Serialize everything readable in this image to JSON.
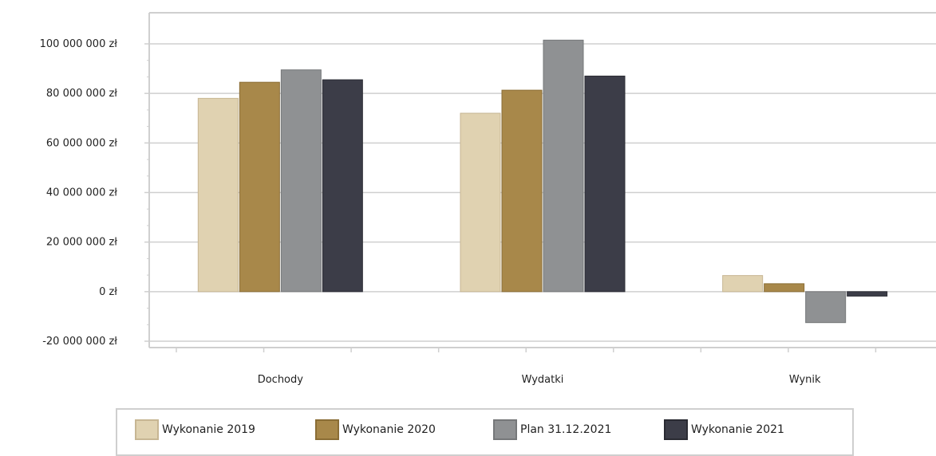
{
  "chart_data": {
    "type": "bar",
    "categories": [
      "Dochody",
      "Wydatki",
      "Wynik"
    ],
    "series": [
      {
        "name": "Wykonanie 2019",
        "color": "#e0d2b1",
        "edge": "#c7b693",
        "values": [
          78000000,
          72000000,
          6500000
        ]
      },
      {
        "name": "Wykonanie 2020",
        "color": "#a8884a",
        "edge": "#8a6d35",
        "values": [
          84500000,
          81300000,
          3200000
        ]
      },
      {
        "name": "Plan 31.12.2021",
        "color": "#8f9193",
        "edge": "#76787a",
        "values": [
          89500000,
          101500000,
          -12500000
        ]
      },
      {
        "name": "Wykonanie 2021",
        "color": "#3c3d48",
        "edge": "#2a2b33",
        "values": [
          85500000,
          87000000,
          -1800000
        ]
      }
    ],
    "ylim": [
      -20000000,
      100000000
    ],
    "yticks": [
      {
        "value": 100000000,
        "label": "100 000 000 zł"
      },
      {
        "value": 80000000,
        "label": "80 000 000 zł"
      },
      {
        "value": 60000000,
        "label": "60 000 000 zł"
      },
      {
        "value": 40000000,
        "label": "40 000 000 zł"
      },
      {
        "value": 20000000,
        "label": "20 000 000 zł"
      },
      {
        "value": 0,
        "label": "0 zł"
      },
      {
        "value": -20000000,
        "label": "-20 000 000 zł"
      }
    ],
    "grid": true,
    "legend_position": "bottom",
    "title": "",
    "xlabel": "",
    "ylabel": ""
  }
}
